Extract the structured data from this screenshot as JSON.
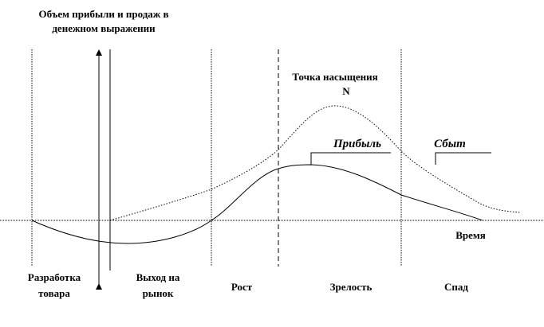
{
  "title": {
    "line1": "Объем прибыли и продаж в",
    "line2": "денежном выражении"
  },
  "saturation": {
    "label": "Точка насыщения",
    "mark": "N"
  },
  "curves": {
    "profit": "Прибыль",
    "sales": "Сбыт"
  },
  "x_axis_label": "Время",
  "stages": [
    {
      "line1": "Разработка",
      "line2": "товара"
    },
    {
      "line1": "Выход на",
      "line2": "рынок"
    },
    {
      "line1": "Рост"
    },
    {
      "line1": "Зрелость"
    },
    {
      "line1": "Спад"
    }
  ]
}
